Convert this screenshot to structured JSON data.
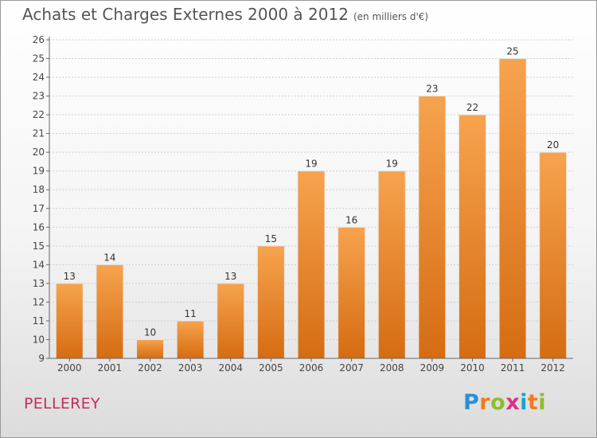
{
  "header": {
    "title": "Achats et Charges Externes 2000 à 2012",
    "unit": "(en milliers d'€)"
  },
  "footer": {
    "commune": "PELLEREY",
    "logo_text": "Proxiti"
  },
  "colors": {
    "bar_light": "#f7a34e",
    "bar_dark": "#d56c12",
    "grid": "#cfcfcf",
    "axis": "#666666",
    "commune": "#c0305a"
  },
  "chart_data": {
    "type": "bar",
    "title": "Achats et Charges Externes 2000 à 2012",
    "subtitle": "(en milliers d'€)",
    "xlabel": "",
    "ylabel": "",
    "categories": [
      "2000",
      "2001",
      "2002",
      "2003",
      "2004",
      "2005",
      "2006",
      "2007",
      "2008",
      "2009",
      "2010",
      "2011",
      "2012"
    ],
    "values": [
      13,
      14,
      10,
      11,
      13,
      15,
      19,
      16,
      19,
      23,
      22,
      25,
      20
    ],
    "data_labels": [
      "13",
      "14",
      "10",
      "11",
      "13",
      "15",
      "19",
      "16",
      "19",
      "23",
      "22",
      "25",
      "20"
    ],
    "ylim": [
      9,
      26
    ],
    "yticks": [
      9,
      10,
      11,
      12,
      13,
      14,
      15,
      16,
      17,
      18,
      19,
      20,
      21,
      22,
      23,
      24,
      25,
      26
    ],
    "ytick_labels": [
      "9",
      "10",
      "11",
      "12",
      "13",
      "14",
      "15",
      "16",
      "17",
      "18",
      "19",
      "20",
      "21",
      "22",
      "23",
      "24",
      "25",
      "26"
    ],
    "grid": true,
    "legend": "none"
  }
}
